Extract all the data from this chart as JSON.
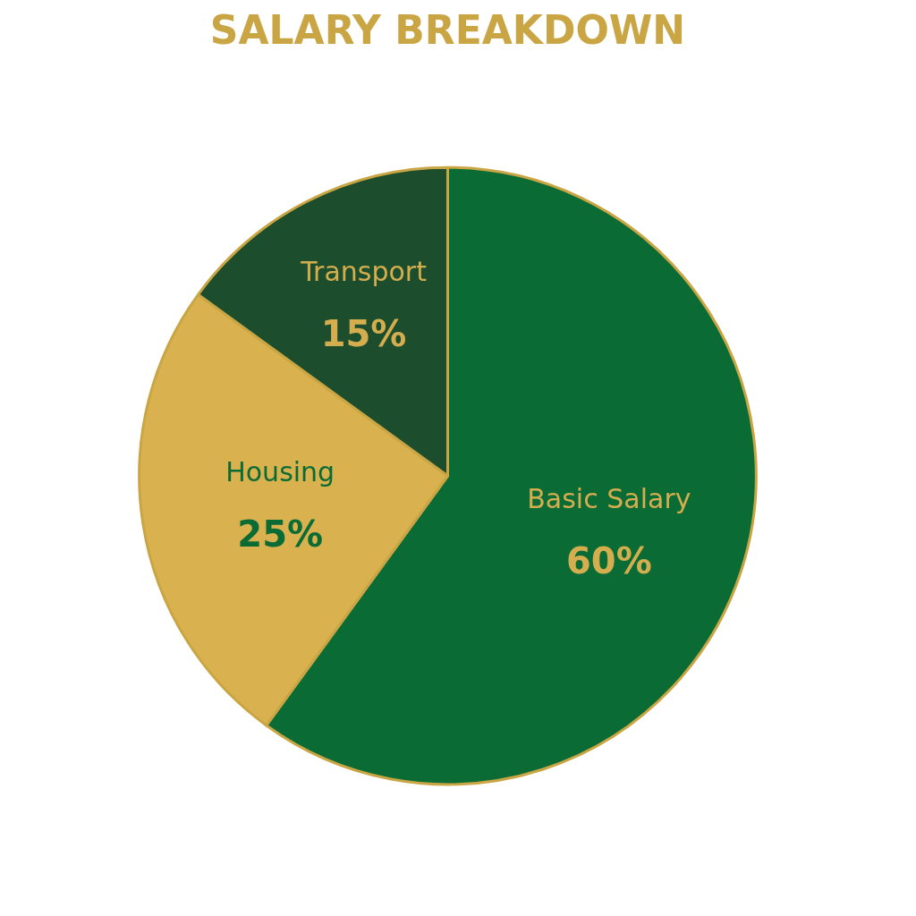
{
  "chart_data": {
    "type": "pie",
    "title": "SALARY BREAKDOWN",
    "categories": [
      "Basic Salary",
      "Housing",
      "Transport"
    ],
    "values": [
      60,
      25,
      15
    ],
    "colors": [
      "#0b6b34",
      "#d9b24f",
      "#1c4d2d"
    ],
    "value_labels": [
      "60%",
      "25%",
      "15%"
    ]
  }
}
